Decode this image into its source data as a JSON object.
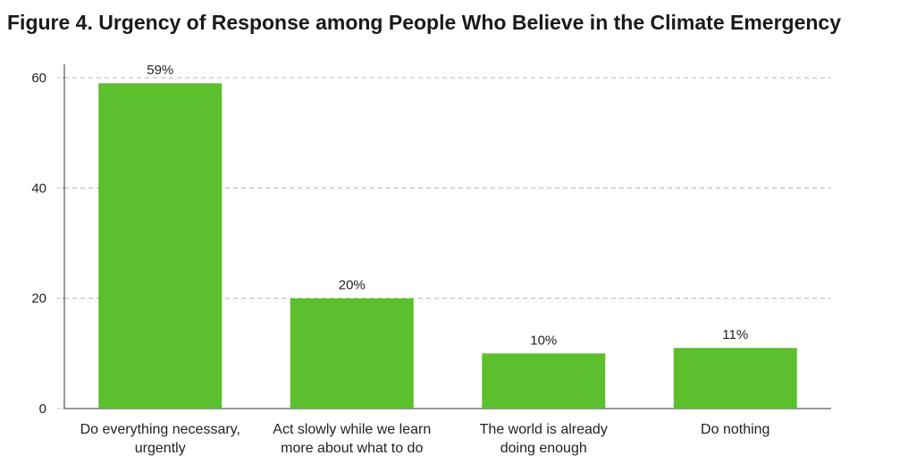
{
  "chart_data": {
    "type": "bar",
    "title": "Figure 4. Urgency of Response among People Who Believe in the Climate Emergency",
    "xlabel": "",
    "ylabel": "",
    "ylim": [
      0,
      60
    ],
    "yticks": [
      0,
      20,
      40,
      60
    ],
    "grid": true,
    "categories": [
      [
        "Do everything necessary,",
        "urgently"
      ],
      [
        "Act slowly while we learn",
        "more about what to do"
      ],
      [
        "The world is already",
        "doing enough"
      ],
      [
        "Do nothing"
      ]
    ],
    "values": [
      59,
      20,
      10,
      11
    ],
    "data_labels": [
      "59%",
      "20%",
      "10%",
      "11%"
    ],
    "bar_color": "#5cbf2e",
    "grid_color": "#b5b5b5",
    "axis_color": "#333333"
  }
}
